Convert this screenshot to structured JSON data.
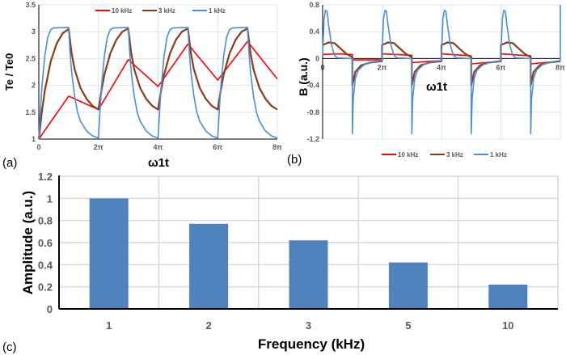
{
  "chart_data": [
    {
      "panel_label": "(a)",
      "type": "line",
      "xlabel": "ω1t",
      "ylabel": "Te / Te0",
      "x_unit": "π",
      "xlim": [
        0,
        8
      ],
      "ylim": [
        1,
        3.5
      ],
      "xticks": [
        0,
        2,
        4,
        6,
        8
      ],
      "xtick_labels": [
        "0",
        "2π",
        "4π",
        "6π",
        "8π"
      ],
      "yticks": [
        1,
        1.5,
        2,
        2.5,
        3,
        3.5
      ],
      "ytick_labels": [
        "1",
        "1.5",
        "2",
        "2.5",
        "3",
        "3.5"
      ],
      "grid": true,
      "legend": "top",
      "series": [
        {
          "name": "10 kHz",
          "color": "#ff0000",
          "points": [
            [
              0,
              1
            ],
            [
              1,
              1.8
            ],
            [
              2,
              1.55
            ],
            [
              3,
              2.48
            ],
            [
              4,
              1.98
            ],
            [
              5,
              2.77
            ],
            [
              6,
              2.1
            ],
            [
              7,
              2.82
            ],
            [
              8,
              2.12
            ]
          ]
        },
        {
          "name": "3 kHz",
          "color": "#8b3a1a",
          "points": [
            [
              0,
              1
            ],
            [
              0.1,
              1.5
            ],
            [
              0.2,
              1.9
            ],
            [
              0.4,
              2.45
            ],
            [
              0.6,
              2.78
            ],
            [
              0.8,
              2.97
            ],
            [
              1,
              3.05
            ],
            [
              1.1,
              2.6
            ],
            [
              1.2,
              2.3
            ],
            [
              1.4,
              1.95
            ],
            [
              1.6,
              1.75
            ],
            [
              1.8,
              1.62
            ],
            [
              2,
              1.55
            ],
            [
              2.1,
              1.9
            ],
            [
              2.2,
              2.2
            ],
            [
              2.4,
              2.6
            ],
            [
              2.6,
              2.85
            ],
            [
              2.8,
              3.0
            ],
            [
              3,
              3.06
            ],
            [
              3.1,
              2.6
            ],
            [
              3.2,
              2.3
            ],
            [
              3.4,
              1.95
            ],
            [
              3.6,
              1.75
            ],
            [
              3.8,
              1.62
            ],
            [
              4,
              1.55
            ],
            [
              4.1,
              1.9
            ],
            [
              4.2,
              2.2
            ],
            [
              4.4,
              2.6
            ],
            [
              4.6,
              2.85
            ],
            [
              4.8,
              3.0
            ],
            [
              5,
              3.06
            ],
            [
              5.1,
              2.6
            ],
            [
              5.2,
              2.3
            ],
            [
              5.4,
              1.95
            ],
            [
              5.6,
              1.75
            ],
            [
              5.8,
              1.62
            ],
            [
              6,
              1.55
            ],
            [
              6.1,
              1.9
            ],
            [
              6.2,
              2.2
            ],
            [
              6.4,
              2.6
            ],
            [
              6.6,
              2.85
            ],
            [
              6.8,
              3.0
            ],
            [
              7,
              3.06
            ],
            [
              7.1,
              2.6
            ],
            [
              7.2,
              2.3
            ],
            [
              7.4,
              1.95
            ],
            [
              7.6,
              1.75
            ],
            [
              7.8,
              1.62
            ],
            [
              8,
              1.55
            ]
          ]
        },
        {
          "name": "1 kHz",
          "color": "#4a8fd6",
          "points": [
            [
              0,
              1
            ],
            [
              0.05,
              1.5
            ],
            [
              0.1,
              1.95
            ],
            [
              0.2,
              2.55
            ],
            [
              0.3,
              2.9
            ],
            [
              0.4,
              3.04
            ],
            [
              0.5,
              3.07
            ],
            [
              1,
              3.08
            ],
            [
              1.05,
              2.6
            ],
            [
              1.1,
              2.25
            ],
            [
              1.2,
              1.8
            ],
            [
              1.3,
              1.5
            ],
            [
              1.4,
              1.33
            ],
            [
              1.6,
              1.15
            ],
            [
              1.8,
              1.06
            ],
            [
              2,
              1.02
            ],
            [
              2.05,
              1.5
            ],
            [
              2.1,
              1.95
            ],
            [
              2.2,
              2.55
            ],
            [
              2.3,
              2.9
            ],
            [
              2.4,
              3.04
            ],
            [
              2.5,
              3.07
            ],
            [
              3,
              3.08
            ],
            [
              3.05,
              2.6
            ],
            [
              3.1,
              2.25
            ],
            [
              3.2,
              1.8
            ],
            [
              3.3,
              1.5
            ],
            [
              3.4,
              1.33
            ],
            [
              3.6,
              1.15
            ],
            [
              3.8,
              1.06
            ],
            [
              4,
              1.02
            ],
            [
              4.05,
              1.5
            ],
            [
              4.1,
              1.95
            ],
            [
              4.2,
              2.55
            ],
            [
              4.3,
              2.9
            ],
            [
              4.4,
              3.04
            ],
            [
              4.5,
              3.07
            ],
            [
              5,
              3.08
            ],
            [
              5.05,
              2.6
            ],
            [
              5.1,
              2.25
            ],
            [
              5.2,
              1.8
            ],
            [
              5.3,
              1.5
            ],
            [
              5.4,
              1.33
            ],
            [
              5.6,
              1.15
            ],
            [
              5.8,
              1.06
            ],
            [
              6,
              1.02
            ],
            [
              6.05,
              1.5
            ],
            [
              6.1,
              1.95
            ],
            [
              6.2,
              2.55
            ],
            [
              6.3,
              2.9
            ],
            [
              6.4,
              3.04
            ],
            [
              6.5,
              3.07
            ],
            [
              7,
              3.08
            ],
            [
              7.05,
              2.6
            ],
            [
              7.1,
              2.25
            ],
            [
              7.2,
              1.8
            ],
            [
              7.3,
              1.5
            ],
            [
              7.4,
              1.33
            ],
            [
              7.6,
              1.15
            ],
            [
              7.8,
              1.06
            ],
            [
              8,
              1.02
            ]
          ]
        }
      ]
    },
    {
      "panel_label": "(b)",
      "type": "line",
      "xlabel": "ω1t",
      "ylabel": "B (a.u.)",
      "x_unit": "π",
      "xlim": [
        0,
        8
      ],
      "ylim": [
        -1.2,
        0.8
      ],
      "xticks": [
        0,
        2,
        4,
        6,
        8
      ],
      "xtick_labels": [
        "0",
        "2π",
        "4π",
        "6π",
        "8π"
      ],
      "yticks": [
        -1.2,
        -0.8,
        -0.4,
        0,
        0.4,
        0.8
      ],
      "ytick_labels": [
        "-1.2",
        "-0.8",
        "-0.4",
        "0",
        "0.4",
        "0.8"
      ],
      "grid": true,
      "legend": "bottom",
      "series": [
        {
          "name": "10 kHz",
          "color": "#ff0000",
          "points": [
            [
              0,
              0.06
            ],
            [
              0.5,
              0.07
            ],
            [
              1,
              0.06
            ],
            [
              1,
              -0.02
            ],
            [
              2,
              -0.02
            ],
            [
              2,
              0.07
            ],
            [
              3,
              0.05
            ],
            [
              3,
              -0.06
            ],
            [
              4,
              -0.03
            ],
            [
              4,
              0.07
            ],
            [
              5,
              0.04
            ],
            [
              5,
              -0.08
            ],
            [
              6,
              -0.04
            ],
            [
              6,
              0.07
            ],
            [
              7,
              0.04
            ],
            [
              7,
              -0.08
            ],
            [
              8,
              -0.04
            ]
          ]
        },
        {
          "name": "3 kHz",
          "color": "#8b3a1a",
          "points": [
            [
              0,
              0.2
            ],
            [
              0.2,
              0.24
            ],
            [
              0.4,
              0.23
            ],
            [
              0.6,
              0.15
            ],
            [
              0.8,
              0.07
            ],
            [
              1,
              0.02
            ],
            [
              1,
              -0.4
            ],
            [
              1.1,
              -0.2
            ],
            [
              1.3,
              -0.1
            ],
            [
              1.6,
              -0.06
            ],
            [
              2,
              -0.04
            ],
            [
              2,
              0.2
            ],
            [
              2.2,
              0.24
            ],
            [
              2.4,
              0.23
            ],
            [
              2.6,
              0.15
            ],
            [
              2.8,
              0.07
            ],
            [
              3,
              0.02
            ],
            [
              3,
              -0.4
            ],
            [
              3.1,
              -0.2
            ],
            [
              3.3,
              -0.1
            ],
            [
              3.6,
              -0.06
            ],
            [
              4,
              -0.04
            ],
            [
              4,
              0.2
            ],
            [
              4.2,
              0.24
            ],
            [
              4.4,
              0.23
            ],
            [
              4.6,
              0.15
            ],
            [
              4.8,
              0.07
            ],
            [
              5,
              0.02
            ],
            [
              5,
              -0.4
            ],
            [
              5.1,
              -0.2
            ],
            [
              5.3,
              -0.1
            ],
            [
              5.6,
              -0.06
            ],
            [
              6,
              -0.04
            ],
            [
              6,
              0.2
            ],
            [
              6.2,
              0.24
            ],
            [
              6.4,
              0.23
            ],
            [
              6.6,
              0.15
            ],
            [
              6.8,
              0.07
            ],
            [
              7,
              0.02
            ],
            [
              7,
              -0.4
            ],
            [
              7.1,
              -0.2
            ],
            [
              7.3,
              -0.1
            ],
            [
              7.6,
              -0.06
            ],
            [
              8,
              -0.04
            ]
          ]
        },
        {
          "name": "1 kHz",
          "color": "#4a8fd6",
          "points": [
            [
              0,
              0.05
            ],
            [
              0.05,
              0.6
            ],
            [
              0.1,
              0.72
            ],
            [
              0.15,
              0.7
            ],
            [
              0.2,
              0.5
            ],
            [
              0.3,
              0.2
            ],
            [
              0.4,
              0.05
            ],
            [
              0.5,
              0.01
            ],
            [
              1,
              0
            ],
            [
              1,
              -1.12
            ],
            [
              1.03,
              -0.6
            ],
            [
              1.1,
              -0.3
            ],
            [
              1.2,
              -0.17
            ],
            [
              1.4,
              -0.09
            ],
            [
              1.7,
              -0.05
            ],
            [
              2,
              -0.03
            ],
            [
              2,
              0.05
            ],
            [
              2.05,
              0.6
            ],
            [
              2.1,
              0.72
            ],
            [
              2.15,
              0.7
            ],
            [
              2.2,
              0.5
            ],
            [
              2.3,
              0.2
            ],
            [
              2.4,
              0.05
            ],
            [
              2.5,
              0.01
            ],
            [
              3,
              0
            ],
            [
              3,
              -1.12
            ],
            [
              3.03,
              -0.6
            ],
            [
              3.1,
              -0.3
            ],
            [
              3.2,
              -0.17
            ],
            [
              3.4,
              -0.09
            ],
            [
              3.7,
              -0.05
            ],
            [
              4,
              -0.03
            ],
            [
              4,
              0.05
            ],
            [
              4.05,
              0.6
            ],
            [
              4.1,
              0.72
            ],
            [
              4.15,
              0.7
            ],
            [
              4.2,
              0.5
            ],
            [
              4.3,
              0.2
            ],
            [
              4.4,
              0.05
            ],
            [
              4.5,
              0.01
            ],
            [
              5,
              0
            ],
            [
              5,
              -1.12
            ],
            [
              5.03,
              -0.6
            ],
            [
              5.1,
              -0.3
            ],
            [
              5.2,
              -0.17
            ],
            [
              5.4,
              -0.09
            ],
            [
              5.7,
              -0.05
            ],
            [
              6,
              -0.03
            ],
            [
              6,
              0.05
            ],
            [
              6.05,
              0.6
            ],
            [
              6.1,
              0.72
            ],
            [
              6.15,
              0.7
            ],
            [
              6.2,
              0.5
            ],
            [
              6.3,
              0.2
            ],
            [
              6.4,
              0.05
            ],
            [
              6.5,
              0.01
            ],
            [
              7,
              0
            ],
            [
              7,
              -1.12
            ],
            [
              7.03,
              -0.6
            ],
            [
              7.1,
              -0.3
            ],
            [
              7.2,
              -0.17
            ],
            [
              7.4,
              -0.09
            ],
            [
              7.7,
              -0.05
            ],
            [
              8,
              -0.03
            ],
            [
              8,
              0.8
            ]
          ]
        }
      ]
    },
    {
      "panel_label": "(c)",
      "type": "bar",
      "xlabel": "Frequency (kHz)",
      "ylabel": "Amplitude (a.u.)",
      "categories": [
        "1",
        "2",
        "3",
        "5",
        "10"
      ],
      "values": [
        1.0,
        0.77,
        0.62,
        0.42,
        0.22
      ],
      "ylim": [
        0,
        1.2
      ],
      "yticks": [
        0,
        0.2,
        0.4,
        0.6,
        0.8,
        1,
        1.2
      ],
      "ytick_labels": [
        "0",
        "0.2",
        "0.4",
        "0.6",
        "0.8",
        "1",
        "1.2"
      ],
      "grid": true,
      "bar_color": "#4f81bd"
    }
  ]
}
